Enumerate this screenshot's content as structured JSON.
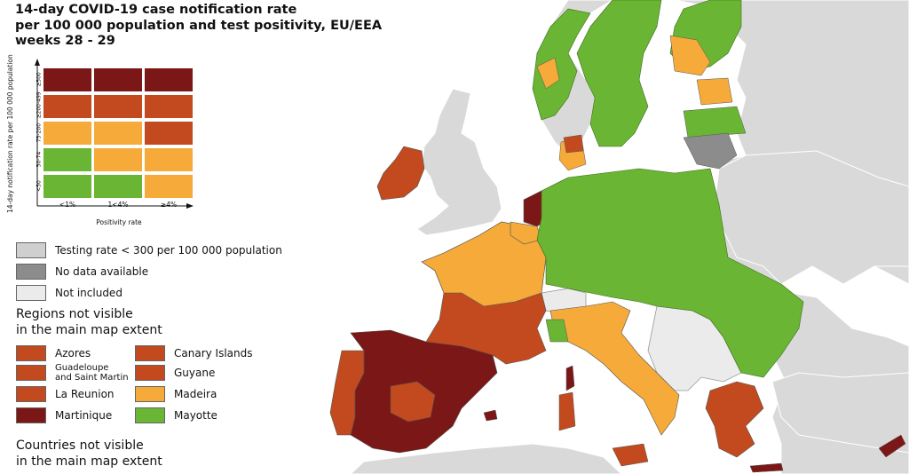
{
  "title": {
    "line1": "14-day COVID-19 case notification rate",
    "line2": "per 100 000 population and test positivity, EU/EEA",
    "line3": "weeks 28 - 29"
  },
  "colors": {
    "sea": "#ffffff",
    "nonEU": "#d9d9d9",
    "green": "#6ab534",
    "yellow": "#f5aa3a",
    "orange": "#c24a1e",
    "darkred": "#7b1716",
    "grey": "#8c8c8c",
    "lightgrey": "#cfcfcf",
    "verylight": "#ebebeb"
  },
  "matrix": {
    "y_axis_label": "14-day notification rate per 100 000 population",
    "y_ticks": [
      "≥500",
      "≥200-499",
      "75-200",
      "50-74",
      "<50"
    ],
    "x_ticks": [
      "<1%",
      "1<4%",
      "≥4%"
    ],
    "x_axis_label": "Positivity rate",
    "cells": [
      [
        "darkred",
        "darkred",
        "darkred"
      ],
      [
        "orange",
        "orange",
        "orange"
      ],
      [
        "yellow",
        "yellow",
        "orange"
      ],
      [
        "green",
        "yellow",
        "yellow"
      ],
      [
        "green",
        "green",
        "yellow"
      ]
    ]
  },
  "legend": {
    "testing_rate": "Testing rate < 300 per 100 000 population",
    "no_data": "No data available",
    "not_included": "Not included"
  },
  "regions": {
    "heading_line1": "Regions not visible",
    "heading_line2": "in the main map extent",
    "items": [
      {
        "label": "Azores",
        "color": "orange"
      },
      {
        "label": "Canary Islands",
        "color": "orange"
      },
      {
        "label_line1": "Guadeloupe",
        "label_line2": "and Saint Martin",
        "color": "orange"
      },
      {
        "label": "Guyane",
        "color": "orange"
      },
      {
        "label": "La Reunion",
        "color": "orange"
      },
      {
        "label": "Madeira",
        "color": "yellow"
      },
      {
        "label": "Martinique",
        "color": "darkred"
      },
      {
        "label": "Mayotte",
        "color": "green"
      }
    ]
  },
  "countries": {
    "heading_line1": "Countries not visible",
    "heading_line2": "in the main map extent"
  }
}
